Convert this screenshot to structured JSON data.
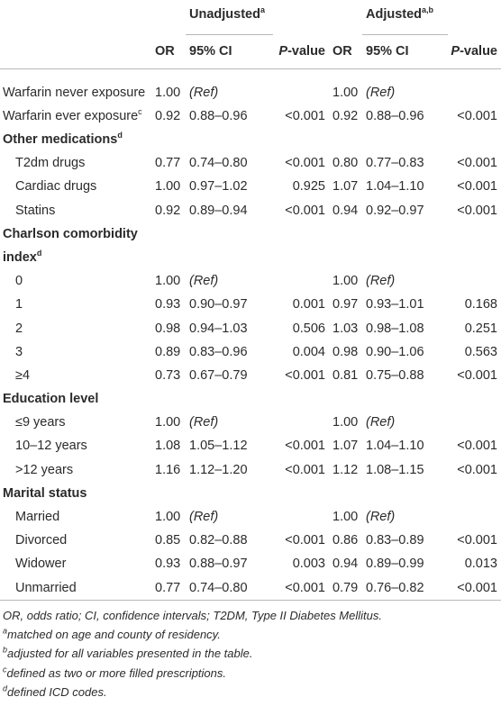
{
  "table": {
    "group_headers": [
      {
        "text": "Unadjusted",
        "sup": "a"
      },
      {
        "text": "Adjusted",
        "sup": "a,b"
      }
    ],
    "column_headers": [
      "OR",
      "95% CI",
      {
        "italic": "P",
        "text": "-value"
      },
      "OR",
      "95% CI",
      {
        "italic": "P",
        "text": "-value"
      }
    ],
    "sections": [
      {
        "rows": [
          {
            "label": "Warfarin never exposure",
            "cells": [
              "1.00",
              {
                "text": "(Ref)",
                "italic": true
              },
              null,
              "1.00",
              {
                "text": "(Ref)",
                "italic": true
              },
              null
            ]
          },
          {
            "label": "Warfarin ever exposure",
            "sup": "c",
            "cells": [
              "0.92",
              "0.88–0.96",
              "<0.001",
              "0.92",
              "0.88–0.96",
              "<0.001"
            ]
          }
        ]
      },
      {
        "title": "Other medications",
        "sup": "d",
        "rows": [
          {
            "label": "T2dm drugs",
            "cells": [
              "0.77",
              "0.74–0.80",
              "<0.001",
              "0.80",
              "0.77–0.83",
              "<0.001"
            ]
          },
          {
            "label": "Cardiac drugs",
            "cells": [
              "1.00",
              "0.97–1.02",
              "0.925",
              "1.07",
              "1.04–1.10",
              "<0.001"
            ]
          },
          {
            "label": "Statins",
            "cells": [
              "0.92",
              "0.89–0.94",
              "<0.001",
              "0.94",
              "0.92–0.97",
              "<0.001"
            ]
          }
        ]
      },
      {
        "title": "Charlson comorbidity index",
        "sup": "d",
        "rows": [
          {
            "label": "0",
            "cells": [
              "1.00",
              {
                "text": "(Ref)",
                "italic": true
              },
              null,
              "1.00",
              {
                "text": "(Ref)",
                "italic": true
              },
              null
            ]
          },
          {
            "label": "1",
            "cells": [
              "0.93",
              "0.90–0.97",
              "0.001",
              "0.97",
              "0.93–1.01",
              "0.168"
            ]
          },
          {
            "label": "2",
            "cells": [
              "0.98",
              "0.94–1.03",
              "0.506",
              "1.03",
              "0.98–1.08",
              "0.251"
            ]
          },
          {
            "label": "3",
            "cells": [
              "0.89",
              "0.83–0.96",
              "0.004",
              "0.98",
              "0.90–1.06",
              "0.563"
            ]
          },
          {
            "label": "≥4",
            "cells": [
              "0.73",
              "0.67–0.79",
              "<0.001",
              "0.81",
              "0.75–0.88",
              "<0.001"
            ]
          }
        ]
      },
      {
        "title": "Education level",
        "rows": [
          {
            "label": "≤9 years",
            "cells": [
              "1.00",
              {
                "text": "(Ref)",
                "italic": true
              },
              null,
              "1.00",
              {
                "text": "(Ref)",
                "italic": true
              },
              null
            ]
          },
          {
            "label": "10–12 years",
            "cells": [
              "1.08",
              "1.05–1.12",
              "<0.001",
              "1.07",
              "1.04–1.10",
              "<0.001"
            ]
          },
          {
            "label": ">12 years",
            "cells": [
              "1.16",
              "1.12–1.20",
              "<0.001",
              "1.12",
              "1.08–1.15",
              "<0.001"
            ]
          }
        ]
      },
      {
        "title": "Marital status",
        "rows": [
          {
            "label": "Married",
            "cells": [
              "1.00",
              {
                "text": "(Ref)",
                "italic": true
              },
              null,
              "1.00",
              {
                "text": "(Ref)",
                "italic": true
              },
              null
            ]
          },
          {
            "label": "Divorced",
            "cells": [
              "0.85",
              "0.82–0.88",
              "<0.001",
              "0.86",
              "0.83–0.89",
              "<0.001"
            ]
          },
          {
            "label": "Widower",
            "cells": [
              "0.93",
              "0.88–0.97",
              "0.003",
              "0.94",
              "0.89–0.99",
              "0.013"
            ]
          },
          {
            "label": "Unmarried",
            "cells": [
              "0.77",
              "0.74–0.80",
              "<0.001",
              "0.79",
              "0.76–0.82",
              "<0.001"
            ]
          }
        ]
      }
    ],
    "footnotes": {
      "abbreviations": "OR, odds ratio; CI, confidence intervals; T2DM, Type II Diabetes Mellitus.",
      "notes": [
        {
          "mark": "a",
          "text": "matched on age and county of residency."
        },
        {
          "mark": "b",
          "text": "adjusted for all variables presented in the table."
        },
        {
          "mark": "c",
          "text": "defined as two or more filled prescriptions."
        },
        {
          "mark": "d",
          "text": "defined ICD codes."
        }
      ]
    }
  }
}
